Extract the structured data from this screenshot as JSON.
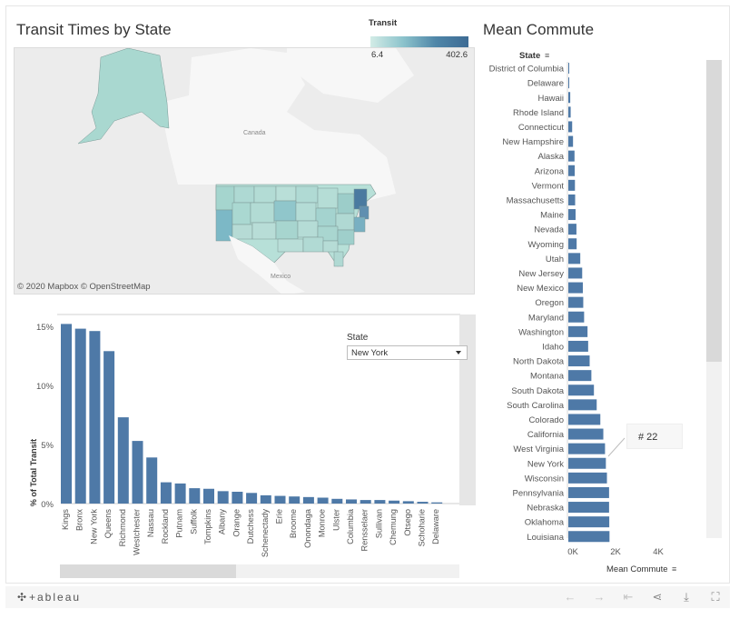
{
  "map_panel": {
    "title": "Transit Times by State",
    "credit": "© 2020 Mapbox © OpenStreetMap",
    "labels": {
      "canada": "Canada",
      "mexico": "Mexico"
    },
    "legend": {
      "title": "Transit",
      "min": "6.4",
      "max": "402.6",
      "colors": [
        "#d3ece6",
        "#8cc3cc",
        "#4f86a8",
        "#3d6b94"
      ]
    }
  },
  "commute_panel": {
    "title": "Mean Commute",
    "row_header": "State",
    "axis_title": "Mean Commute",
    "tooltip": "# 22"
  },
  "state_filter": {
    "label": "State",
    "value": "New York"
  },
  "footer": {
    "logo": "+ableau"
  },
  "chart_data": [
    {
      "type": "bar",
      "orientation": "vertical",
      "ylabel": "% of Total Transit",
      "ylim": [
        0,
        16
      ],
      "yticks": [
        "0%",
        "5%",
        "10%",
        "15%"
      ],
      "grid": false,
      "color": "#4e79a7",
      "categories": [
        "Kings",
        "Bronx",
        "New York",
        "Queens",
        "Richmond",
        "Westchester",
        "Nassau",
        "Rockland",
        "Putnam",
        "Suffolk",
        "Tompkins",
        "Albany",
        "Orange",
        "Dutchess",
        "Schenectady",
        "Erie",
        "Broome",
        "Onondaga",
        "Monroe",
        "Ulster",
        "Columbia",
        "Rensselaer",
        "Sullivan",
        "Chemung",
        "Otsego",
        "Schoharie",
        "Delaware"
      ],
      "values": [
        15.2,
        14.8,
        14.6,
        12.9,
        7.3,
        5.3,
        3.9,
        1.8,
        1.7,
        1.3,
        1.25,
        1.05,
        1.0,
        0.9,
        0.7,
        0.65,
        0.6,
        0.55,
        0.5,
        0.4,
        0.35,
        0.3,
        0.3,
        0.25,
        0.2,
        0.15,
        0.1
      ]
    },
    {
      "type": "bar",
      "orientation": "horizontal",
      "xlabel": "Mean Commute",
      "xlim": [
        0,
        6500
      ],
      "xticks": [
        "0K",
        "2K",
        "4K"
      ],
      "grid": false,
      "color": "#4e79a7",
      "categories": [
        "District of Columbia",
        "Delaware",
        "Hawaii",
        "Rhode Island",
        "Connecticut",
        "New Hampshire",
        "Alaska",
        "Arizona",
        "Vermont",
        "Massachusetts",
        "Maine",
        "Nevada",
        "Wyoming",
        "Utah",
        "New Jersey",
        "New Mexico",
        "Oregon",
        "Maryland",
        "Washington",
        "Idaho",
        "North Dakota",
        "Montana",
        "South Dakota",
        "South Carolina",
        "Colorado",
        "California",
        "West Virginia",
        "New York",
        "Wisconsin",
        "Pennsylvania",
        "Nebraska",
        "Oklahoma",
        "Louisiana"
      ],
      "values": [
        5,
        40,
        90,
        110,
        180,
        220,
        290,
        300,
        310,
        320,
        340,
        380,
        390,
        560,
        650,
        680,
        700,
        740,
        900,
        930,
        1000,
        1080,
        1200,
        1330,
        1500,
        1640,
        1720,
        1760,
        1810,
        1910,
        1910,
        1920,
        1930
      ]
    }
  ]
}
